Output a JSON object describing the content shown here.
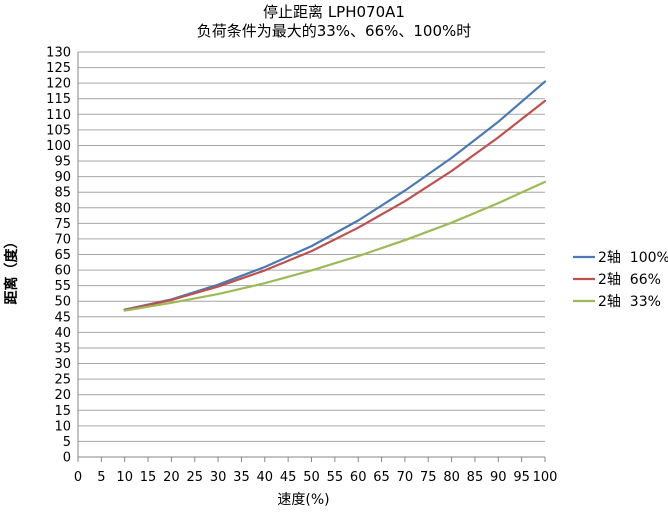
{
  "chart_data": {
    "type": "line",
    "title": "停止距离 LPH070A1",
    "subtitle": "负荷条件为最大的33%、66%、100%时",
    "xlabel": "速度(%)",
    "ylabel": "距离（度）",
    "xlim": [
      0,
      100
    ],
    "ylim": [
      0,
      130
    ],
    "x_ticks": [
      "0",
      "5",
      "10",
      "15",
      "20",
      "25",
      "30",
      "35",
      "40",
      "45",
      "50",
      "55",
      "60",
      "65",
      "70",
      "75",
      "80",
      "85",
      "90",
      "95",
      "100"
    ],
    "y_ticks": [
      "0",
      "5",
      "10",
      "15",
      "20",
      "25",
      "30",
      "35",
      "40",
      "45",
      "50",
      "55",
      "60",
      "65",
      "70",
      "75",
      "80",
      "85",
      "90",
      "95",
      "100",
      "105",
      "110",
      "115",
      "120",
      "125",
      "130"
    ],
    "grid": "horizontal",
    "legend_position": "right",
    "x": [
      10,
      20,
      30,
      40,
      50,
      60,
      70,
      80,
      90,
      100
    ],
    "series": [
      {
        "name": "2轴  100%",
        "color": "#4a7ab5",
        "values": [
          47.3,
          50.6,
          55.3,
          61.0,
          67.7,
          75.9,
          85.5,
          96.0,
          107.6,
          120.5
        ]
      },
      {
        "name": "2轴  66%",
        "color": "#c0504d",
        "values": [
          47.2,
          50.4,
          54.7,
          59.9,
          66.1,
          73.6,
          82.1,
          91.8,
          102.6,
          114.3
        ]
      },
      {
        "name": "2轴  33%",
        "color": "#9bbb59",
        "values": [
          47.0,
          49.5,
          52.3,
          55.8,
          59.9,
          64.5,
          69.6,
          75.2,
          81.5,
          88.3
        ]
      }
    ]
  }
}
